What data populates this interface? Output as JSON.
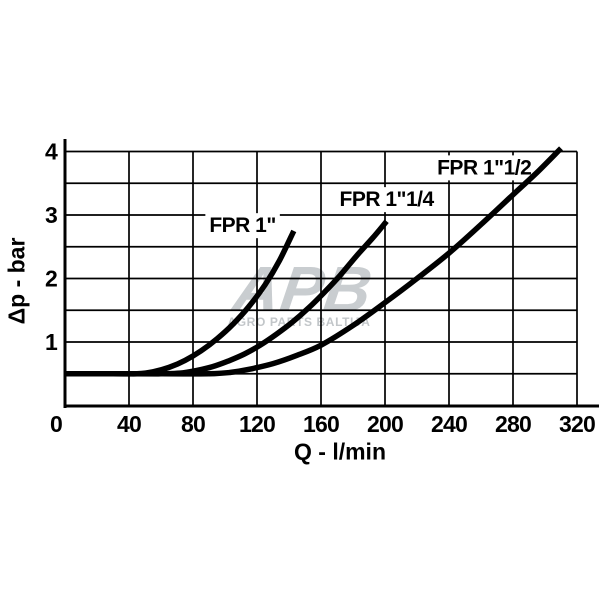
{
  "chart_data": {
    "type": "line",
    "title": "",
    "xlabel": "Q - l/min",
    "ylabel": "Δp - bar",
    "xlim": [
      0,
      320
    ],
    "ylim": [
      0,
      4
    ],
    "x_ticks": [
      0,
      40,
      80,
      120,
      160,
      200,
      240,
      280,
      320
    ],
    "y_ticks": [
      1,
      2,
      3,
      4
    ],
    "x_grid_step": 40,
    "y_grid_step": 0.5,
    "grid": true,
    "legend_position": "inline-labels",
    "line_color": "#000000",
    "background_color": "#ffffff",
    "series": [
      {
        "name": "FPR 1\"",
        "label_x": 111,
        "label_y": 2.84,
        "points": [
          [
            0,
            0.5
          ],
          [
            30,
            0.5
          ],
          [
            45,
            0.5
          ],
          [
            55,
            0.53
          ],
          [
            65,
            0.6
          ],
          [
            75,
            0.71
          ],
          [
            85,
            0.86
          ],
          [
            95,
            1.05
          ],
          [
            105,
            1.28
          ],
          [
            115,
            1.56
          ],
          [
            125,
            1.9
          ],
          [
            134,
            2.28
          ],
          [
            143,
            2.75
          ]
        ]
      },
      {
        "name": "FPR 1\"1/4",
        "label_x": 201,
        "label_y": 3.25,
        "points": [
          [
            0,
            0.5
          ],
          [
            40,
            0.5
          ],
          [
            60,
            0.5
          ],
          [
            72,
            0.51
          ],
          [
            82,
            0.55
          ],
          [
            92,
            0.61
          ],
          [
            102,
            0.7
          ],
          [
            112,
            0.81
          ],
          [
            122,
            0.95
          ],
          [
            132,
            1.12
          ],
          [
            142,
            1.31
          ],
          [
            152,
            1.53
          ],
          [
            162,
            1.78
          ],
          [
            172,
            2.05
          ],
          [
            182,
            2.35
          ],
          [
            192,
            2.63
          ],
          [
            201,
            2.9
          ]
        ]
      },
      {
        "name": "FPR 1\"1/2",
        "label_x": 262,
        "label_y": 3.75,
        "points": [
          [
            0,
            0.5
          ],
          [
            60,
            0.5
          ],
          [
            90,
            0.5
          ],
          [
            103,
            0.52
          ],
          [
            115,
            0.57
          ],
          [
            130,
            0.66
          ],
          [
            145,
            0.79
          ],
          [
            160,
            0.95
          ],
          [
            180,
            1.26
          ],
          [
            200,
            1.62
          ],
          [
            220,
            2.0
          ],
          [
            240,
            2.4
          ],
          [
            260,
            2.85
          ],
          [
            280,
            3.32
          ],
          [
            295,
            3.67
          ],
          [
            310,
            4.05
          ]
        ]
      }
    ],
    "watermark": {
      "title": "APB",
      "subtitle": "AGRO PARTS BALTIJA",
      "color": "#c9cdd0"
    }
  }
}
